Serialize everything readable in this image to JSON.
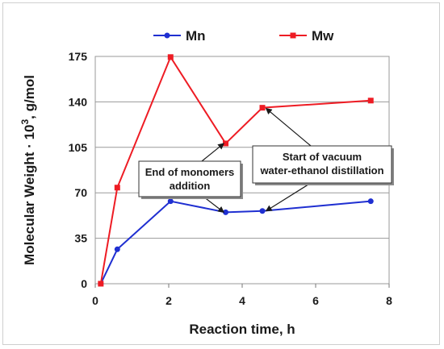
{
  "chart_data": {
    "type": "line",
    "xlabel": "Reaction time, h",
    "ylabel_prefix": "Molecular Weight · 10",
    "ylabel_exp": "3",
    "ylabel_suffix": ", g/mol",
    "xlim": [
      0,
      8
    ],
    "ylim": [
      0,
      175
    ],
    "xticks": [
      0,
      2,
      4,
      6,
      8
    ],
    "yticks": [
      0,
      35,
      70,
      105,
      140,
      175
    ],
    "grid": "horizontal",
    "legend_position": "top",
    "series": [
      {
        "name": "Mn",
        "color": "#1f2fd1",
        "marker": "circle",
        "x": [
          0.15,
          0.6,
          2.05,
          3.55,
          4.55,
          7.5
        ],
        "y": [
          0,
          26.5,
          63.5,
          55,
          56,
          63.5
        ]
      },
      {
        "name": "Mw",
        "color": "#ee1c24",
        "marker": "square",
        "x": [
          0.15,
          0.6,
          2.05,
          3.55,
          4.55,
          7.5
        ],
        "y": [
          0,
          74,
          174.5,
          108,
          135.5,
          141
        ]
      }
    ],
    "annotations": [
      {
        "lines": [
          "End of monomers",
          "addition"
        ],
        "arrow_targets": [
          [
            3.5,
            108
          ],
          [
            3.5,
            55
          ]
        ]
      },
      {
        "lines": [
          "Start of vacuum",
          "water-ethanol distillation"
        ],
        "arrow_targets": [
          [
            4.65,
            135
          ],
          [
            4.65,
            56
          ]
        ]
      }
    ]
  }
}
